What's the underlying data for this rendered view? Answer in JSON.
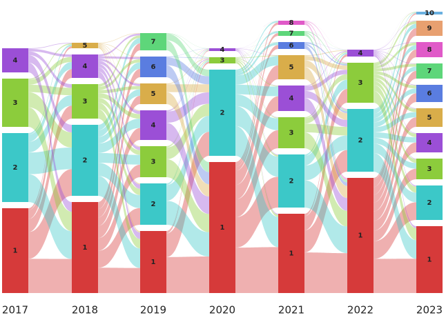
{
  "chart_data": {
    "type": "sankey",
    "columns": [
      {
        "label": "2017",
        "nodes": [
          {
            "label": "1",
            "value": 123,
            "color": "#d63a3a"
          },
          {
            "label": "2",
            "value": 100,
            "color": "#3cc8c8"
          },
          {
            "label": "3",
            "value": 70,
            "color": "#8ccc3c"
          },
          {
            "label": "4",
            "value": 35,
            "color": "#9b4fd6"
          }
        ]
      },
      {
        "label": "2018",
        "nodes": [
          {
            "label": "1",
            "value": 132,
            "color": "#d63a3a"
          },
          {
            "label": "2",
            "value": 103,
            "color": "#3cc8c8"
          },
          {
            "label": "3",
            "value": 50,
            "color": "#8ccc3c"
          },
          {
            "label": "4",
            "value": 34,
            "color": "#9b4fd6"
          },
          {
            "label": "5",
            "value": 8,
            "color": "#d9ad4a"
          }
        ]
      },
      {
        "label": "2019",
        "nodes": [
          {
            "label": "1",
            "value": 90,
            "color": "#d63a3a"
          },
          {
            "label": "2",
            "value": 60,
            "color": "#3cc8c8"
          },
          {
            "label": "3",
            "value": 45,
            "color": "#8ccc3c"
          },
          {
            "label": "4",
            "value": 43,
            "color": "#9b4fd6"
          },
          {
            "label": "5",
            "value": 30,
            "color": "#d9ad4a"
          },
          {
            "label": "6",
            "value": 30,
            "color": "#5a7de0"
          },
          {
            "label": "7",
            "value": 25,
            "color": "#5ed67a"
          }
        ]
      },
      {
        "label": "2020",
        "nodes": [
          {
            "label": "1",
            "value": 190,
            "color": "#d63a3a"
          },
          {
            "label": "2",
            "value": 125,
            "color": "#3cc8c8"
          },
          {
            "label": "3",
            "value": 9,
            "color": "#8ccc3c"
          },
          {
            "label": "4",
            "value": 4,
            "color": "#9b4fd6"
          }
        ]
      },
      {
        "label": "2021",
        "nodes": [
          {
            "label": "1",
            "value": 115,
            "color": "#d63a3a"
          },
          {
            "label": "2",
            "value": 77,
            "color": "#3cc8c8"
          },
          {
            "label": "3",
            "value": 45,
            "color": "#8ccc3c"
          },
          {
            "label": "4",
            "value": 37,
            "color": "#9b4fd6"
          },
          {
            "label": "5",
            "value": 35,
            "color": "#d9ad4a"
          },
          {
            "label": "6",
            "value": 10,
            "color": "#5a7de0"
          },
          {
            "label": "7",
            "value": 7,
            "color": "#5ed67a"
          },
          {
            "label": "8",
            "value": 6,
            "color": "#e05ac8"
          }
        ]
      },
      {
        "label": "2022",
        "nodes": [
          {
            "label": "1",
            "value": 167,
            "color": "#d63a3a"
          },
          {
            "label": "2",
            "value": 91,
            "color": "#3cc8c8"
          },
          {
            "label": "3",
            "value": 58,
            "color": "#8ccc3c"
          },
          {
            "label": "4",
            "value": 10,
            "color": "#9b4fd6"
          }
        ]
      },
      {
        "label": "2023",
        "nodes": [
          {
            "label": "1",
            "value": 97,
            "color": "#d63a3a"
          },
          {
            "label": "2",
            "value": 50,
            "color": "#3cc8c8"
          },
          {
            "label": "3",
            "value": 30,
            "color": "#8ccc3c"
          },
          {
            "label": "4",
            "value": 28,
            "color": "#9b4fd6"
          },
          {
            "label": "5",
            "value": 27,
            "color": "#d9ad4a"
          },
          {
            "label": "6",
            "value": 25,
            "color": "#5a7de0"
          },
          {
            "label": "7",
            "value": 22,
            "color": "#5ed67a"
          },
          {
            "label": "8",
            "value": 22,
            "color": "#e05ac8"
          },
          {
            "label": "9",
            "value": 22,
            "color": "#e8a070"
          },
          {
            "label": "10",
            "value": 4,
            "color": "#6ab0e0"
          }
        ]
      }
    ]
  }
}
